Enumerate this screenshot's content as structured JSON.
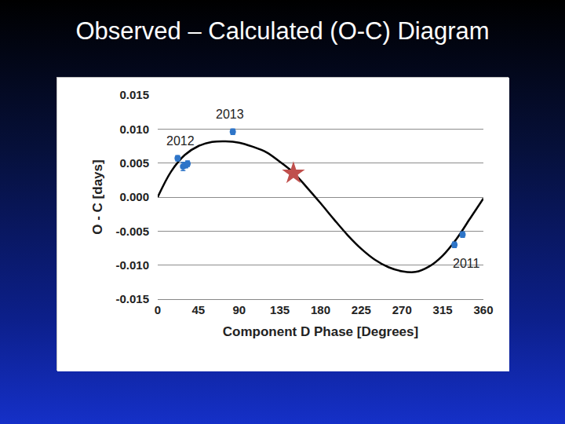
{
  "chart_data": {
    "type": "scatter",
    "title": "Observed – Calculated (O-C) Diagram",
    "x_label": "Component D Phase [Degrees]",
    "y_label": "O - C [days]",
    "xlim": [
      0,
      360
    ],
    "xticks": [
      0,
      45,
      90,
      135,
      180,
      225,
      270,
      315,
      360
    ],
    "ylim": [
      -0.015,
      0.015
    ],
    "yticks": [
      {
        "value": -0.015,
        "label": "-0.015"
      },
      {
        "value": -0.01,
        "label": "-0.010"
      },
      {
        "value": -0.005,
        "label": "-0.005"
      },
      {
        "value": 0,
        "label": "0.000"
      },
      {
        "value": 0.005,
        "label": "0.005"
      },
      {
        "value": 0.01,
        "label": "0.010"
      },
      {
        "value": 0.015,
        "label": "0.015"
      }
    ],
    "grid": true,
    "series": [
      {
        "type": "line",
        "line_style": "solid",
        "color": "#000000",
        "x": [
          0,
          15,
          30,
          45,
          60,
          75,
          90,
          105,
          120,
          135,
          150,
          165,
          180,
          195,
          210,
          225,
          240,
          255,
          270,
          285,
          300,
          315,
          330,
          345,
          360
        ],
        "values": [
          0.0,
          0.0038,
          0.0062,
          0.0075,
          0.0081,
          0.0082,
          0.008,
          0.0074,
          0.0066,
          0.0052,
          0.0036,
          0.0014,
          -0.0009,
          -0.0033,
          -0.0056,
          -0.0076,
          -0.0092,
          -0.0103,
          -0.0109,
          -0.011,
          -0.0102,
          -0.0086,
          -0.0062,
          -0.0032,
          -0.0002
        ]
      },
      {
        "type": "scatter",
        "marker": "circle",
        "color": "#2e75c8",
        "x": [
          22,
          28,
          31,
          33,
          83,
          328,
          337
        ],
        "values": [
          0.0057,
          0.0045,
          0.0047,
          0.0049,
          0.0096,
          -0.007,
          -0.0055
        ],
        "errors": [
          0.0004,
          0.0006,
          0.0004,
          0.0004,
          0.0004,
          0.0004,
          0.0004
        ]
      },
      {
        "type": "scatter",
        "marker": "star",
        "color": "#c0504d",
        "x": [
          150
        ],
        "values": [
          0.0035
        ]
      }
    ],
    "annotations": [
      {
        "text": "2012",
        "x": 25,
        "y": 0.0082
      },
      {
        "text": "2013",
        "x": 80,
        "y": 0.0122
      },
      {
        "text": "2011",
        "x": 341,
        "y": -0.0097
      }
    ]
  }
}
